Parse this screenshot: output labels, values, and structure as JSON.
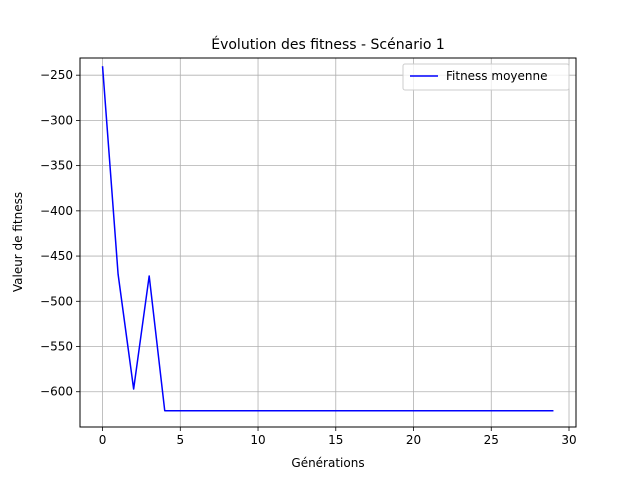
{
  "chart_data": {
    "type": "line",
    "title": "Évolution des fitness - Scénario 1",
    "xlabel": "Générations",
    "ylabel": "Valeur de fitness",
    "xlim": [
      -1.45,
      30.45
    ],
    "ylim": [
      -639,
      -231
    ],
    "xticks": [
      0,
      5,
      10,
      15,
      20,
      25,
      30
    ],
    "yticks": [
      -250,
      -300,
      -350,
      -400,
      -450,
      -500,
      -550,
      -600
    ],
    "grid": true,
    "legend_position": "top-right",
    "series": [
      {
        "name": "Fitness moyenne",
        "color": "#0000ff",
        "x": [
          0,
          1,
          2,
          3,
          4,
          5,
          6,
          7,
          8,
          9,
          10,
          11,
          12,
          13,
          14,
          15,
          16,
          17,
          18,
          19,
          20,
          21,
          22,
          23,
          24,
          25,
          26,
          27,
          28,
          29
        ],
        "y": [
          -240,
          -470,
          -597,
          -472,
          -621,
          -621,
          -621,
          -621,
          -621,
          -621,
          -621,
          -621,
          -621,
          -621,
          -621,
          -621,
          -621,
          -621,
          -621,
          -621,
          -621,
          -621,
          -621,
          -621,
          -621,
          -621,
          -621,
          -621,
          -621,
          -621
        ]
      }
    ]
  }
}
